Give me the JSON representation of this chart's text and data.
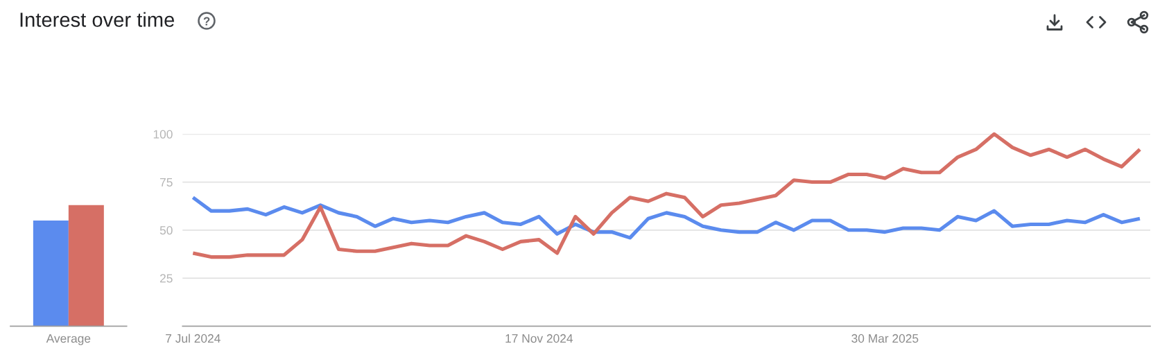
{
  "chart_data": [
    {
      "type": "bar",
      "title": "Interest over time",
      "categories": [
        "Average"
      ],
      "series": [
        {
          "color": "#5b8bee",
          "values": [
            55
          ]
        },
        {
          "color": "#d66f65",
          "values": [
            63
          ]
        }
      ],
      "ylim": [
        0,
        100
      ],
      "tick_labels": "x"
    },
    {
      "type": "line",
      "x": [
        "2024-07-07",
        "2024-07-14",
        "2024-07-21",
        "2024-07-28",
        "2024-08-04",
        "2024-08-11",
        "2024-08-18",
        "2024-08-25",
        "2024-09-01",
        "2024-09-08",
        "2024-09-15",
        "2024-09-22",
        "2024-09-29",
        "2024-10-06",
        "2024-10-13",
        "2024-10-20",
        "2024-10-27",
        "2024-11-03",
        "2024-11-10",
        "2024-11-17",
        "2024-11-24",
        "2024-12-01",
        "2024-12-08",
        "2024-12-15",
        "2024-12-22",
        "2024-12-29",
        "2025-01-05",
        "2025-01-12",
        "2025-01-19",
        "2025-01-26",
        "2025-02-02",
        "2025-02-09",
        "2025-02-16",
        "2025-02-23",
        "2025-03-02",
        "2025-03-09",
        "2025-03-16",
        "2025-03-23",
        "2025-03-30",
        "2025-04-06",
        "2025-04-13",
        "2025-04-20",
        "2025-04-27",
        "2025-05-04",
        "2025-05-11",
        "2025-05-18",
        "2025-05-25",
        "2025-06-01",
        "2025-06-08",
        "2025-06-15",
        "2025-06-22",
        "2025-06-29",
        "2025-07-06"
      ],
      "series": [
        {
          "color": "#5b8bee",
          "values": [
            67,
            60,
            60,
            61,
            58,
            62,
            59,
            63,
            59,
            57,
            52,
            56,
            54,
            55,
            54,
            57,
            59,
            54,
            53,
            57,
            48,
            53,
            49,
            49,
            46,
            56,
            59,
            57,
            52,
            50,
            49,
            49,
            54,
            50,
            55,
            55,
            50,
            50,
            49,
            51,
            51,
            50,
            57,
            55,
            60,
            52,
            53,
            53,
            55,
            54,
            58,
            54,
            56
          ]
        },
        {
          "color": "#d66f65",
          "values": [
            38,
            36,
            36,
            37,
            37,
            37,
            45,
            62,
            40,
            39,
            39,
            41,
            43,
            42,
            42,
            47,
            44,
            40,
            44,
            45,
            38,
            57,
            48,
            59,
            67,
            65,
            69,
            67,
            57,
            63,
            64,
            66,
            68,
            76,
            75,
            75,
            79,
            79,
            77,
            82,
            80,
            80,
            88,
            92,
            100,
            93,
            89,
            92,
            88,
            92,
            87,
            83,
            92
          ]
        }
      ],
      "xlim": [
        "2024-07-03",
        "2025-07-10"
      ],
      "xticks": [
        {
          "value": "2024-07-07",
          "label": "7 Jul 2024"
        },
        {
          "value": "2024-11-17",
          "label": "17 Nov 2024"
        },
        {
          "value": "2025-03-30",
          "label": "30 Mar 2025"
        }
      ],
      "ylim": [
        0,
        100
      ],
      "yticks": [
        25,
        50,
        75,
        100
      ],
      "grid": "y"
    }
  ]
}
